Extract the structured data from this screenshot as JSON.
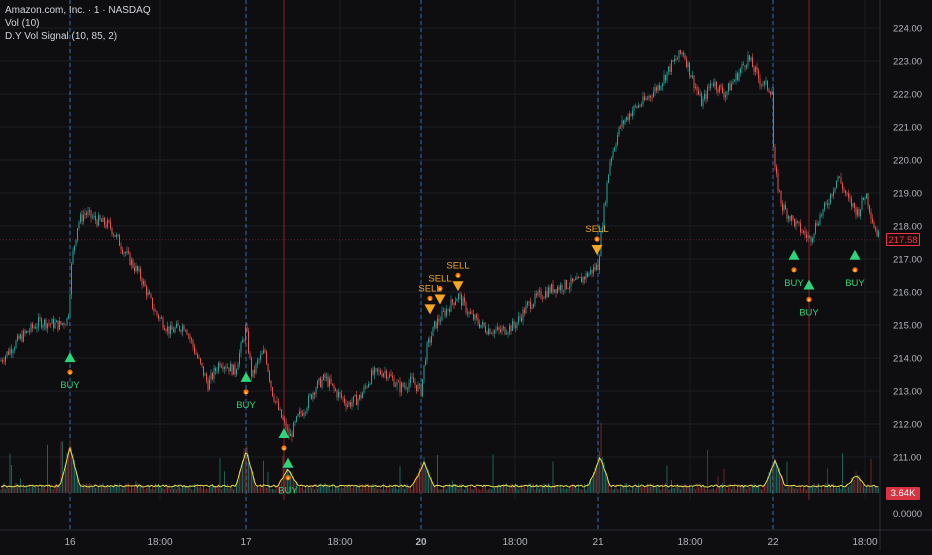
{
  "header": {
    "title": "Amazon.com, Inc. · 1 · NASDAQ",
    "indicator_vol": "Vol (10)",
    "indicator_signal": "D.Y Vol Signal (10, 85, 2)"
  },
  "colors": {
    "background": "#0e0e10",
    "up": "#26a69a",
    "down": "#ef5350",
    "buy": "#2ed47a",
    "sell": "#f5a623",
    "volume_line": "#e8e04d",
    "session_line_blue": "#3a6fb5",
    "signal_line_red": "#8a1e24"
  },
  "chart_data": {
    "type": "candlestick",
    "x_ticks": [
      "16",
      "18:00",
      "17",
      "18:00",
      "20",
      "18:00",
      "21",
      "18:00",
      "22",
      "18:00"
    ],
    "price_axis": {
      "ylim": [
        210.5,
        224.5
      ],
      "ticks": [
        "224.00",
        "223.00",
        "222.00",
        "221.00",
        "220.00",
        "219.00",
        "218.00",
        "217.00",
        "216.00",
        "215.00",
        "214.00",
        "213.00",
        "212.00",
        "211.00"
      ],
      "last_price": "217.58"
    },
    "volume_axis": {
      "tick": "0.0000",
      "last_volume": "3.64K"
    },
    "price_path": [
      [
        0,
        213.9
      ],
      [
        20,
        214.6
      ],
      [
        40,
        215.1
      ],
      [
        60,
        215.0
      ],
      [
        68,
        215.2
      ],
      [
        72,
        217.0
      ],
      [
        78,
        218.1
      ],
      [
        85,
        218.4
      ],
      [
        95,
        218.2
      ],
      [
        110,
        218.0
      ],
      [
        125,
        217.2
      ],
      [
        140,
        216.5
      ],
      [
        155,
        215.4
      ],
      [
        170,
        214.8
      ],
      [
        185,
        215.0
      ],
      [
        195,
        214.2
      ],
      [
        208,
        213.2
      ],
      [
        220,
        213.9
      ],
      [
        235,
        213.6
      ],
      [
        246,
        214.9
      ],
      [
        252,
        213.4
      ],
      [
        258,
        213.9
      ],
      [
        265,
        214.2
      ],
      [
        272,
        213.0
      ],
      [
        280,
        212.3
      ],
      [
        290,
        211.6
      ],
      [
        298,
        212.2
      ],
      [
        305,
        212.5
      ],
      [
        315,
        213.1
      ],
      [
        325,
        213.4
      ],
      [
        335,
        213.0
      ],
      [
        348,
        212.6
      ],
      [
        360,
        212.8
      ],
      [
        372,
        213.5
      ],
      [
        385,
        213.6
      ],
      [
        400,
        213.1
      ],
      [
        412,
        213.3
      ],
      [
        421,
        213.0
      ],
      [
        426,
        214.2
      ],
      [
        435,
        215.0
      ],
      [
        445,
        215.4
      ],
      [
        458,
        215.9
      ],
      [
        470,
        215.3
      ],
      [
        485,
        214.9
      ],
      [
        500,
        214.8
      ],
      [
        515,
        215.0
      ],
      [
        528,
        215.6
      ],
      [
        540,
        215.9
      ],
      [
        552,
        216.1
      ],
      [
        565,
        216.2
      ],
      [
        578,
        216.3
      ],
      [
        590,
        216.6
      ],
      [
        598,
        216.8
      ],
      [
        602,
        218.0
      ],
      [
        610,
        220.0
      ],
      [
        620,
        221.0
      ],
      [
        632,
        221.5
      ],
      [
        645,
        221.8
      ],
      [
        660,
        222.3
      ],
      [
        672,
        222.9
      ],
      [
        683,
        223.3
      ],
      [
        692,
        222.5
      ],
      [
        702,
        221.7
      ],
      [
        712,
        222.4
      ],
      [
        725,
        222.0
      ],
      [
        738,
        222.6
      ],
      [
        748,
        223.1
      ],
      [
        760,
        222.4
      ],
      [
        772,
        222.1
      ],
      [
        774,
        219.8
      ],
      [
        782,
        218.6
      ],
      [
        792,
        218.2
      ],
      [
        800,
        217.9
      ],
      [
        810,
        217.6
      ],
      [
        818,
        218.2
      ],
      [
        826,
        218.6
      ],
      [
        838,
        219.5
      ],
      [
        848,
        218.8
      ],
      [
        858,
        218.4
      ],
      [
        866,
        219.0
      ],
      [
        874,
        218.0
      ],
      [
        880,
        217.6
      ]
    ],
    "signals": [
      {
        "type": "BUY",
        "x": 70,
        "price": 214.3,
        "label": "BUY"
      },
      {
        "type": "BUY",
        "x": 246,
        "price": 213.7,
        "label": "BUY"
      },
      {
        "type": "BUY",
        "x": 284,
        "price": 212.0,
        "label": ""
      },
      {
        "type": "BUY",
        "x": 288,
        "price": 211.1,
        "label": "BUY"
      },
      {
        "type": "SELL",
        "x": 430,
        "price": 215.2,
        "label": "SELL"
      },
      {
        "type": "SELL",
        "x": 440,
        "price": 215.5,
        "label": "SELL"
      },
      {
        "type": "SELL",
        "x": 458,
        "price": 215.9,
        "label": "SELL"
      },
      {
        "type": "SELL",
        "x": 597,
        "price": 217.0,
        "label": "SELL"
      },
      {
        "type": "BUY",
        "x": 794,
        "price": 217.4,
        "label": "BUY"
      },
      {
        "type": "BUY",
        "x": 809,
        "price": 216.5,
        "label": "BUY"
      },
      {
        "type": "BUY",
        "x": 855,
        "price": 217.4,
        "label": "BUY"
      }
    ],
    "volume_spikes": [
      [
        70,
        45
      ],
      [
        246,
        42
      ],
      [
        288,
        20
      ],
      [
        424,
        28
      ],
      [
        600,
        35
      ],
      [
        775,
        30
      ],
      [
        856,
        12
      ],
      [
        598,
        25
      ],
      [
        422,
        20
      ]
    ],
    "session_lines_x": [
      70,
      246,
      421,
      598,
      773
    ],
    "red_lines_x": [
      284,
      809
    ]
  }
}
